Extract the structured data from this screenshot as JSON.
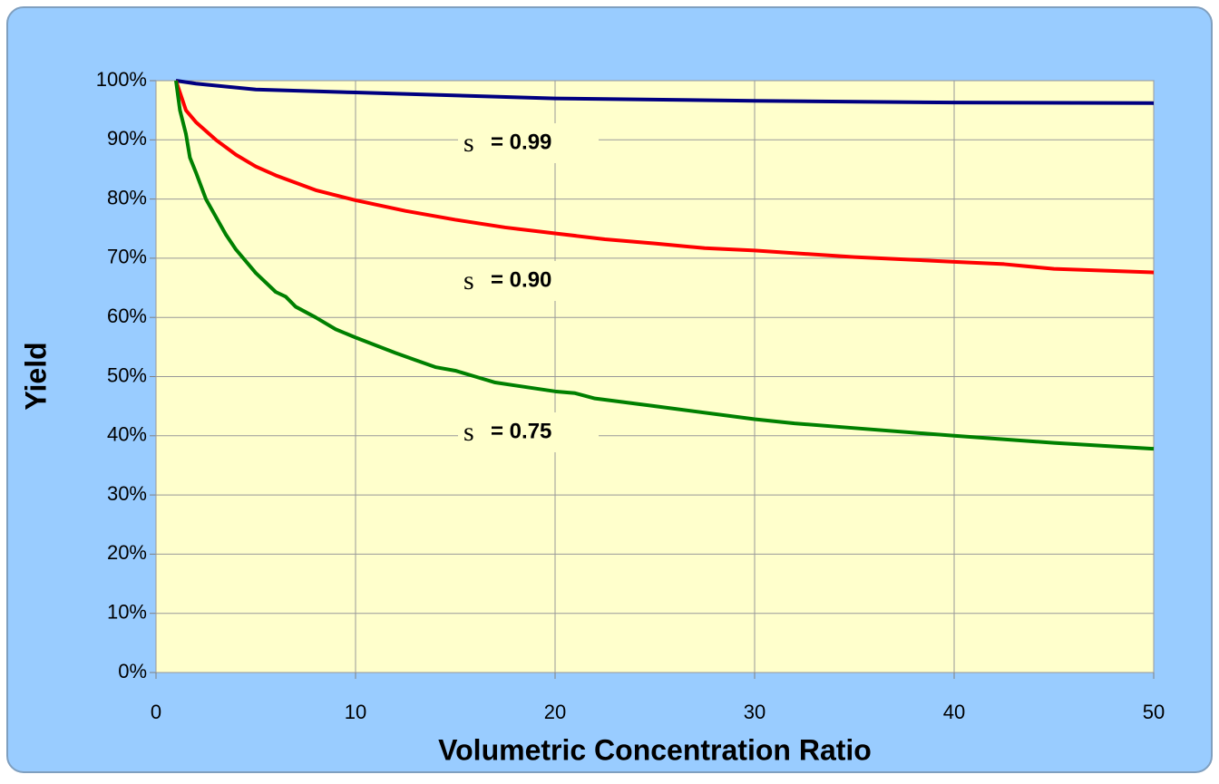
{
  "chart_data": {
    "type": "line",
    "x_label": "Volumetric Concentration Ratio",
    "y_label": "Yield",
    "xlim": [
      0,
      50
    ],
    "xticks": [
      0,
      10,
      20,
      30,
      40,
      50
    ],
    "ylim": [
      0,
      100
    ],
    "yticks": [
      {
        "value": 0,
        "label": "0%"
      },
      {
        "value": 10,
        "label": "10%"
      },
      {
        "value": 20,
        "label": "20%"
      },
      {
        "value": 30,
        "label": "30%"
      },
      {
        "value": 40,
        "label": "40%"
      },
      {
        "value": 50,
        "label": "50%"
      },
      {
        "value": 60,
        "label": "60%"
      },
      {
        "value": 70,
        "label": "70%"
      },
      {
        "value": 80,
        "label": "80%"
      },
      {
        "value": 90,
        "label": "90%"
      },
      {
        "value": 100,
        "label": "100%"
      }
    ],
    "grid": true,
    "series": [
      {
        "color": "#000080",
        "x": [
          1,
          2,
          5,
          10,
          20,
          30,
          40,
          50
        ],
        "values": [
          100,
          99.5,
          98.5,
          98,
          97,
          96.6,
          96.3,
          96.2
        ]
      },
      {
        "color": "#ff0000",
        "x": [
          1,
          1.5,
          2,
          3,
          4,
          5,
          6,
          8,
          10,
          12.5,
          15,
          17.5,
          20,
          22.5,
          25,
          27.5,
          30,
          35,
          40,
          42.5,
          45,
          50
        ],
        "values": [
          100,
          95,
          93,
          90,
          87.5,
          85.5,
          84,
          81.5,
          79.8,
          78,
          76.5,
          75.2,
          74.2,
          73.2,
          72.5,
          71.7,
          71.3,
          70.2,
          69.4,
          69,
          68.2,
          67.6
        ]
      },
      {
        "color": "#008000",
        "x": [
          1,
          1.2,
          1.5,
          1.7,
          2,
          2.5,
          3,
          3.5,
          4,
          5,
          6,
          6.5,
          7,
          8,
          9,
          10,
          12,
          13,
          14,
          15,
          16,
          17,
          18,
          20,
          21,
          22,
          25,
          30,
          32,
          35,
          40,
          45,
          50
        ],
        "values": [
          100,
          95,
          91,
          87,
          84.5,
          80,
          77,
          74,
          71.5,
          67.5,
          64.3,
          63.5,
          61.8,
          60,
          58,
          56.6,
          54,
          52.8,
          51.6,
          51,
          50,
          49,
          48.5,
          47.5,
          47.2,
          46.3,
          45,
          42.8,
          42.1,
          41.3,
          40,
          38.8,
          37.8
        ]
      }
    ],
    "annotations": [
      {
        "symbol": "s",
        "text": "= 0.99"
      },
      {
        "symbol": "s",
        "text": "= 0.90"
      },
      {
        "symbol": "s",
        "text": "= 0.75"
      }
    ]
  }
}
